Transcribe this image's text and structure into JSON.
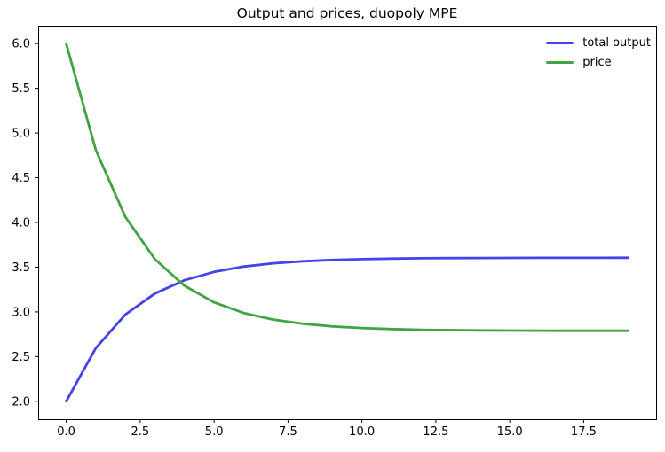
{
  "figure": {
    "background": "#ffffff",
    "spine_color": "#000000",
    "tick_color": "#000000",
    "text_color": "#000000"
  },
  "chart_data": {
    "type": "line",
    "title": "Output and prices, duopoly MPE",
    "xlabel": "",
    "ylabel": "",
    "x": [
      0,
      1,
      2,
      3,
      4,
      5,
      6,
      7,
      8,
      9,
      10,
      11,
      12,
      13,
      14,
      15,
      16,
      17,
      18,
      19
    ],
    "series": [
      {
        "name": "total output",
        "color": "#4343ec",
        "values": [
          2.0,
          2.595,
          2.97,
          3.205,
          3.354,
          3.447,
          3.506,
          3.543,
          3.566,
          3.581,
          3.59,
          3.596,
          3.6,
          3.602,
          3.603,
          3.604,
          3.605,
          3.605,
          3.605,
          3.606
        ]
      },
      {
        "name": "price",
        "color": "#40a344",
        "values": [
          6.0,
          4.81,
          4.061,
          3.589,
          3.292,
          3.106,
          2.988,
          2.914,
          2.867,
          2.838,
          2.82,
          2.808,
          2.8,
          2.796,
          2.793,
          2.791,
          2.79,
          2.789,
          2.789,
          2.789
        ]
      }
    ],
    "xlim": [
      -0.95,
      19.95
    ],
    "ylim": [
      1.8,
      6.2
    ],
    "x_ticks": [
      0,
      2.5,
      5,
      7.5,
      10,
      12.5,
      15,
      17.5
    ],
    "x_tick_labels": [
      "0.0",
      "2.5",
      "5.0",
      "7.5",
      "10.0",
      "12.5",
      "15.0",
      "17.5"
    ],
    "y_ticks": [
      2.0,
      2.5,
      3.0,
      3.5,
      4.0,
      4.5,
      5.0,
      5.5,
      6.0
    ],
    "y_tick_labels": [
      "2.0",
      "2.5",
      "3.0",
      "3.5",
      "4.0",
      "4.5",
      "5.0",
      "5.5",
      "6.0"
    ],
    "grid": false,
    "legend": {
      "position": "upper right",
      "frame": false,
      "entries": [
        "total output",
        "price"
      ]
    }
  }
}
